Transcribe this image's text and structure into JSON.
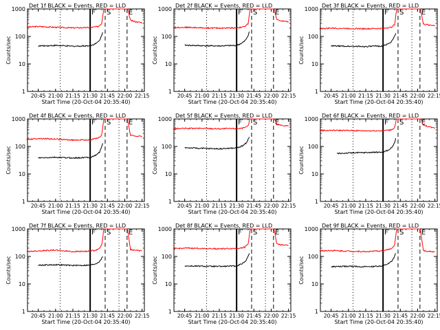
{
  "chart_data": [
    {
      "type": "line",
      "title": "Det 1f BLACK = Events, RED = LLD",
      "xlabel": "Start Time (20-Oct-04 20:35:40)",
      "ylabel": "Counts/sec",
      "yscale": "log",
      "ylim": [
        1,
        1000
      ],
      "xlim": [
        "20:35:40",
        "22:17:00"
      ],
      "xtick_labels": [
        "20:45",
        "21:00",
        "21:15",
        "21:30",
        "21:45",
        "22:00",
        "22:15"
      ],
      "ytick_labels": [
        "1",
        "10",
        "100",
        "1000"
      ],
      "markers": [
        {
          "time": "21:04",
          "label": "",
          "style": "dotted"
        },
        {
          "time": "21:30",
          "label": "F",
          "style": "solid"
        },
        {
          "time": "21:43",
          "label": "S",
          "style": "dashed"
        },
        {
          "time": "21:55",
          "label": "",
          "style": "dotted"
        },
        {
          "time": "22:02",
          "label": "E",
          "style": "dashed"
        }
      ],
      "series": [
        {
          "color": "#ff0000",
          "x": [
            "20:35",
            "20:45",
            "21:00",
            "21:15",
            "21:30",
            "21:37",
            "21:40",
            "21:41",
            "21:42",
            "21:55",
            "22:02",
            "22:05",
            "22:10",
            "22:15"
          ],
          "y": [
            220,
            230,
            215,
            205,
            210,
            230,
            300,
            600,
            1200,
            1200,
            1200,
            380,
            340,
            320
          ]
        },
        {
          "color": "#000000",
          "x": [
            "20:45",
            "21:00",
            "21:15",
            "21:30",
            "21:35",
            "21:38",
            "21:40",
            "21:41"
          ],
          "y": [
            45,
            47,
            44,
            46,
            55,
            70,
            110,
            140
          ]
        }
      ]
    },
    {
      "type": "line",
      "title": "Det 2f BLACK = Events, RED = LLD",
      "xlabel": "Start Time (20-Oct-04 20:35:40)",
      "ylabel": "Counts/sec",
      "yscale": "log",
      "ylim": [
        1,
        1000
      ],
      "xlim": [
        "20:35:40",
        "22:17:00"
      ],
      "xtick_labels": [
        "20:45",
        "21:00",
        "21:15",
        "21:30",
        "21:45",
        "22:00",
        "22:15"
      ],
      "ytick_labels": [
        "1",
        "10",
        "100",
        "1000"
      ],
      "markers": [
        {
          "time": "21:04",
          "label": "",
          "style": "dotted"
        },
        {
          "time": "21:30",
          "label": "F",
          "style": "solid"
        },
        {
          "time": "21:43",
          "label": "S",
          "style": "dashed"
        },
        {
          "time": "21:55",
          "label": "",
          "style": "dotted"
        },
        {
          "time": "22:02",
          "label": "E",
          "style": "dashed"
        }
      ],
      "series": [
        {
          "color": "#ff0000",
          "x": [
            "20:35",
            "20:45",
            "21:00",
            "21:15",
            "21:30",
            "21:37",
            "21:40",
            "21:41",
            "21:42",
            "21:55",
            "22:02",
            "22:05",
            "22:10",
            "22:15"
          ],
          "y": [
            210,
            215,
            205,
            200,
            205,
            225,
            290,
            600,
            1200,
            1200,
            1200,
            400,
            360,
            340
          ]
        },
        {
          "color": "#000000",
          "x": [
            "20:45",
            "21:00",
            "21:15",
            "21:30",
            "21:35",
            "21:38",
            "21:40",
            "21:41"
          ],
          "y": [
            48,
            46,
            45,
            47,
            58,
            75,
            110,
            150
          ]
        }
      ]
    },
    {
      "type": "line",
      "title": "Det 3f BLACK = Events, RED = LLD",
      "xlabel": "Start Time (20-Oct-04 20:35:40)",
      "ylabel": "Counts/sec",
      "yscale": "log",
      "ylim": [
        1,
        1000
      ],
      "xlim": [
        "20:35:40",
        "22:17:00"
      ],
      "xtick_labels": [
        "20:45",
        "21:00",
        "21:15",
        "21:30",
        "21:45",
        "22:00",
        "22:15"
      ],
      "ytick_labels": [
        "1",
        "10",
        "100",
        "1000"
      ],
      "markers": [
        {
          "time": "21:04",
          "label": "",
          "style": "dotted"
        },
        {
          "time": "21:30",
          "label": "F",
          "style": "solid"
        },
        {
          "time": "21:43",
          "label": "S",
          "style": "dashed"
        },
        {
          "time": "21:55",
          "label": "",
          "style": "dotted"
        },
        {
          "time": "22:02",
          "label": "E",
          "style": "dashed"
        }
      ],
      "series": [
        {
          "color": "#ff0000",
          "x": [
            "20:35",
            "20:45",
            "21:00",
            "21:15",
            "21:30",
            "21:37",
            "21:40",
            "21:41",
            "21:42",
            "21:55",
            "22:02",
            "22:05",
            "22:10",
            "22:15"
          ],
          "y": [
            190,
            200,
            195,
            190,
            195,
            215,
            270,
            550,
            1200,
            1200,
            1200,
            280,
            260,
            250
          ]
        },
        {
          "color": "#000000",
          "x": [
            "20:45",
            "21:00",
            "21:15",
            "21:30",
            "21:35",
            "21:38",
            "21:40",
            "21:41"
          ],
          "y": [
            45,
            44,
            43,
            45,
            55,
            70,
            100,
            130
          ]
        }
      ]
    },
    {
      "type": "line",
      "title": "Det 4f BLACK = Events, RED = LLD",
      "xlabel": "Start Time (20-Oct-04 20:35:40)",
      "ylabel": "Counts/sec",
      "yscale": "log",
      "ylim": [
        1,
        1000
      ],
      "xlim": [
        "20:35:40",
        "22:17:00"
      ],
      "xtick_labels": [
        "20:45",
        "21:00",
        "21:15",
        "21:30",
        "21:45",
        "22:00",
        "22:15"
      ],
      "ytick_labels": [
        "1",
        "10",
        "100",
        "1000"
      ],
      "markers": [
        {
          "time": "21:04",
          "label": "",
          "style": "dotted"
        },
        {
          "time": "21:30",
          "label": "F",
          "style": "solid"
        },
        {
          "time": "21:43",
          "label": "S",
          "style": "dashed"
        },
        {
          "time": "21:55",
          "label": "",
          "style": "dotted"
        },
        {
          "time": "22:02",
          "label": "E",
          "style": "dashed"
        }
      ],
      "series": [
        {
          "color": "#ff0000",
          "x": [
            "20:35",
            "20:45",
            "21:00",
            "21:15",
            "21:30",
            "21:37",
            "21:40",
            "21:41",
            "21:42",
            "21:55",
            "22:02",
            "22:05",
            "22:10",
            "22:15"
          ],
          "y": [
            180,
            195,
            185,
            170,
            175,
            200,
            260,
            520,
            1200,
            1200,
            1200,
            250,
            240,
            230
          ]
        },
        {
          "color": "#000000",
          "x": [
            "20:45",
            "21:00",
            "21:15",
            "21:30",
            "21:35",
            "21:38",
            "21:40",
            "21:41"
          ],
          "y": [
            38,
            40,
            38,
            40,
            48,
            62,
            95,
            130
          ]
        }
      ]
    },
    {
      "type": "line",
      "title": "Det 5f BLACK = Events, RED = LLD",
      "xlabel": "Start Time (20-Oct-04 20:35:40)",
      "ylabel": "Counts/sec",
      "yscale": "log",
      "ylim": [
        1,
        1000
      ],
      "xlim": [
        "20:35:40",
        "22:17:00"
      ],
      "xtick_labels": [
        "20:45",
        "21:00",
        "21:15",
        "21:30",
        "21:45",
        "22:00",
        "22:15"
      ],
      "ytick_labels": [
        "1",
        "10",
        "100",
        "1000"
      ],
      "markers": [
        {
          "time": "21:04",
          "label": "",
          "style": "dotted"
        },
        {
          "time": "21:30",
          "label": "F",
          "style": "solid"
        },
        {
          "time": "21:43",
          "label": "S",
          "style": "dashed"
        },
        {
          "time": "21:55",
          "label": "",
          "style": "dotted"
        },
        {
          "time": "22:02",
          "label": "E",
          "style": "dashed"
        }
      ],
      "series": [
        {
          "color": "#ff0000",
          "x": [
            "20:35",
            "20:45",
            "21:00",
            "21:15",
            "21:30",
            "21:37",
            "21:40",
            "21:41",
            "21:42",
            "21:55",
            "22:02",
            "22:05",
            "22:10",
            "22:15"
          ],
          "y": [
            440,
            450,
            455,
            440,
            450,
            470,
            560,
            800,
            1200,
            1200,
            1200,
            620,
            580,
            560
          ]
        },
        {
          "color": "#000000",
          "x": [
            "20:45",
            "21:00",
            "21:15",
            "21:30",
            "21:35",
            "21:38",
            "21:40",
            "21:41"
          ],
          "y": [
            90,
            85,
            82,
            88,
            105,
            130,
            180,
            220
          ]
        }
      ]
    },
    {
      "type": "line",
      "title": "Det 6f BLACK = Events, RED = LLD",
      "xlabel": "Start Time (20-Oct-04 20:35:40)",
      "ylabel": "Counts/sec",
      "yscale": "log",
      "ylim": [
        1,
        1000
      ],
      "xlim": [
        "20:35:40",
        "22:17:00"
      ],
      "xtick_labels": [
        "20:45",
        "21:00",
        "21:15",
        "21:30",
        "21:45",
        "22:00",
        "22:15"
      ],
      "ytick_labels": [
        "1",
        "10",
        "100",
        "1000"
      ],
      "markers": [
        {
          "time": "21:04",
          "label": "",
          "style": "dotted"
        },
        {
          "time": "21:30",
          "label": "F",
          "style": "solid"
        },
        {
          "time": "21:43",
          "label": "S",
          "style": "dashed"
        },
        {
          "time": "21:55",
          "label": "",
          "style": "dotted"
        },
        {
          "time": "22:02",
          "label": "E",
          "style": "dashed"
        }
      ],
      "series": [
        {
          "color": "#ff0000",
          "x": [
            "20:35",
            "20:45",
            "21:00",
            "21:15",
            "21:30",
            "21:37",
            "21:40",
            "21:41",
            "21:42",
            "21:55",
            "22:02",
            "22:05",
            "22:10",
            "22:15"
          ],
          "y": [
            380,
            385,
            380,
            370,
            375,
            400,
            480,
            750,
            1200,
            1200,
            1200,
            600,
            520,
            460
          ]
        },
        {
          "color": "#000000",
          "x": [
            "20:50",
            "21:00",
            "21:15",
            "21:30",
            "21:35",
            "21:38",
            "21:40",
            "21:41"
          ],
          "y": [
            55,
            58,
            60,
            62,
            75,
            95,
            140,
            200
          ]
        }
      ]
    },
    {
      "type": "line",
      "title": "Det 7f BLACK = Events, RED = LLD",
      "xlabel": "Start Time (20-Oct-04 20:35:40)",
      "ylabel": "Counts/sec",
      "yscale": "log",
      "ylim": [
        1,
        1000
      ],
      "xlim": [
        "20:35:40",
        "22:17:00"
      ],
      "xtick_labels": [
        "20:45",
        "21:00",
        "21:15",
        "21:30",
        "21:45",
        "22:00",
        "22:15"
      ],
      "ytick_labels": [
        "1",
        "10",
        "100",
        "1000"
      ],
      "markers": [
        {
          "time": "21:04",
          "label": "",
          "style": "dotted"
        },
        {
          "time": "21:30",
          "label": "F",
          "style": "solid"
        },
        {
          "time": "21:43",
          "label": "S",
          "style": "dashed"
        },
        {
          "time": "21:55",
          "label": "",
          "style": "dotted"
        },
        {
          "time": "22:02",
          "label": "E",
          "style": "dashed"
        }
      ],
      "series": [
        {
          "color": "#ff0000",
          "x": [
            "20:35",
            "20:45",
            "21:00",
            "21:15",
            "21:30",
            "21:37",
            "21:40",
            "21:41",
            "21:42",
            "21:55",
            "22:02",
            "22:05",
            "22:10",
            "22:15"
          ],
          "y": [
            150,
            160,
            170,
            150,
            155,
            180,
            250,
            500,
            1200,
            1200,
            1200,
            180,
            165,
            160
          ]
        },
        {
          "color": "#000000",
          "x": [
            "20:45",
            "21:00",
            "21:15",
            "21:30",
            "21:35",
            "21:38",
            "21:40",
            "21:41"
          ],
          "y": [
            48,
            50,
            47,
            48,
            55,
            65,
            85,
            100
          ]
        }
      ]
    },
    {
      "type": "line",
      "title": "Det 8f BLACK = Events, RED = LLD",
      "xlabel": "Start Time (20-Oct-04 20:35:40)",
      "ylabel": "Counts/sec",
      "yscale": "log",
      "ylim": [
        1,
        1000
      ],
      "xlim": [
        "20:35:40",
        "22:17:00"
      ],
      "xtick_labels": [
        "20:45",
        "21:00",
        "21:15",
        "21:30",
        "21:45",
        "22:00",
        "22:15"
      ],
      "ytick_labels": [
        "1",
        "10",
        "100",
        "1000"
      ],
      "markers": [
        {
          "time": "21:04",
          "label": "",
          "style": "dotted"
        },
        {
          "time": "21:30",
          "label": "F",
          "style": "solid"
        },
        {
          "time": "21:43",
          "label": "S",
          "style": "dashed"
        },
        {
          "time": "21:55",
          "label": "",
          "style": "dotted"
        },
        {
          "time": "22:02",
          "label": "E",
          "style": "dashed"
        }
      ],
      "series": [
        {
          "color": "#ff0000",
          "x": [
            "20:35",
            "20:45",
            "21:00",
            "21:15",
            "21:30",
            "21:37",
            "21:40",
            "21:41",
            "21:42",
            "21:55",
            "22:02",
            "22:05",
            "22:10",
            "22:15"
          ],
          "y": [
            190,
            200,
            195,
            190,
            195,
            215,
            280,
            560,
            1200,
            1200,
            1200,
            280,
            260,
            250
          ]
        },
        {
          "color": "#000000",
          "x": [
            "20:45",
            "21:00",
            "21:15",
            "21:30",
            "21:35",
            "21:38",
            "21:40",
            "21:41"
          ],
          "y": [
            45,
            44,
            43,
            45,
            55,
            70,
            100,
            130
          ]
        }
      ]
    },
    {
      "type": "line",
      "title": "Det 9f BLACK = Events, RED = LLD",
      "xlabel": "Start Time (20-Oct-04 20:35:40)",
      "ylabel": "Counts/sec",
      "yscale": "log",
      "ylim": [
        1,
        1000
      ],
      "xlim": [
        "20:35:40",
        "22:17:00"
      ],
      "xtick_labels": [
        "20:45",
        "21:00",
        "21:15",
        "21:30",
        "21:45",
        "22:00",
        "22:15"
      ],
      "ytick_labels": [
        "1",
        "10",
        "100",
        "1000"
      ],
      "markers": [
        {
          "time": "21:04",
          "label": "",
          "style": "dotted"
        },
        {
          "time": "21:30",
          "label": "F",
          "style": "solid"
        },
        {
          "time": "21:43",
          "label": "S",
          "style": "dashed"
        },
        {
          "time": "21:55",
          "label": "",
          "style": "dotted"
        },
        {
          "time": "22:02",
          "label": "E",
          "style": "dashed"
        }
      ],
      "series": [
        {
          "color": "#ff0000",
          "x": [
            "20:35",
            "20:45",
            "21:00",
            "21:15",
            "21:30",
            "21:37",
            "21:40",
            "21:41",
            "21:42",
            "21:55",
            "22:02",
            "22:05",
            "22:10",
            "22:15"
          ],
          "y": [
            160,
            165,
            155,
            150,
            160,
            190,
            260,
            520,
            1200,
            1200,
            1200,
            160,
            150,
            145
          ]
        },
        {
          "color": "#000000",
          "x": [
            "20:45",
            "21:00",
            "21:15",
            "21:30",
            "21:35",
            "21:38",
            "21:40",
            "21:41"
          ],
          "y": [
            42,
            44,
            42,
            45,
            55,
            70,
            100,
            130
          ]
        }
      ]
    }
  ]
}
